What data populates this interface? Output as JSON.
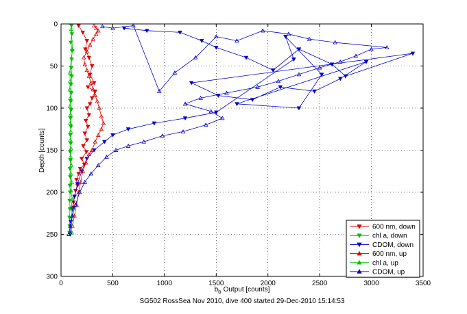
{
  "chart_data": {
    "type": "scatter",
    "title": "",
    "xlabel": "Output [counts]",
    "xlabel_prefix": "b",
    "xlabel_subscript": "b",
    "ylabel": "Depth [counts]",
    "caption": "SG502 RossSea Nov 2010, dive 400 started 29-Dec-2010 15:14:53",
    "xlim": [
      0,
      3500
    ],
    "ylim": [
      0,
      300
    ],
    "y_reversed": true,
    "grid": true,
    "legend_position": "lower-right",
    "x_ticks": [
      0,
      500,
      1000,
      1500,
      2000,
      2500,
      3000,
      3500
    ],
    "y_ticks": [
      0,
      50,
      100,
      150,
      200,
      250,
      300
    ],
    "series": [
      {
        "name": "600 nm, down",
        "color": "#e00000",
        "marker": "triangle-down",
        "x": [
          170,
          210,
          250,
          235,
          270,
          300,
          280,
          320,
          260,
          330,
          300,
          280,
          250,
          270,
          240,
          260,
          230,
          250,
          215,
          245,
          200,
          225,
          185,
          170,
          150,
          160,
          140,
          130,
          120,
          115
        ],
        "y": [
          2,
          10,
          20,
          30,
          40,
          50,
          60,
          70,
          75,
          80,
          88,
          95,
          100,
          108,
          115,
          122,
          130,
          138,
          145,
          152,
          160,
          167,
          172,
          178,
          185,
          192,
          198,
          205,
          212,
          218
        ]
      },
      {
        "name": "chl a, down",
        "color": "#00c000",
        "marker": "triangle-down",
        "x": [
          100,
          105,
          95,
          108,
          102,
          98,
          104,
          96,
          100,
          94,
          98,
          92,
          96,
          90,
          94,
          88,
          92,
          86,
          90,
          85,
          88,
          84,
          86,
          82,
          84,
          82
        ],
        "y": [
          2,
          12,
          22,
          32,
          42,
          52,
          62,
          72,
          82,
          92,
          102,
          112,
          122,
          132,
          142,
          152,
          162,
          172,
          182,
          192,
          200,
          210,
          220,
          230,
          240,
          248
        ]
      },
      {
        "name": "CDOM, down",
        "color": "#0000d0",
        "marker": "triangle-down",
        "x": [
          610,
          830,
          1150,
          1360,
          1500,
          1790,
          2050,
          2300,
          2620,
          2750,
          3400,
          1260,
          1520,
          1850,
          2120,
          2450,
          2700,
          2950,
          1700,
          2300,
          2520,
          2170,
          2250,
          1500,
          1200,
          900,
          650,
          500,
          420,
          320,
          250,
          200,
          160,
          130,
          110,
          95,
          90
        ],
        "y": [
          5,
          8,
          10,
          20,
          28,
          40,
          55,
          30,
          48,
          62,
          35,
          70,
          85,
          90,
          75,
          80,
          65,
          45,
          95,
          100,
          60,
          15,
          42,
          105,
          112,
          118,
          125,
          132,
          140,
          150,
          160,
          175,
          190,
          205,
          220,
          235,
          250
        ]
      },
      {
        "name": "600 nm, up",
        "color": "#e00000",
        "marker": "triangle-up",
        "x": [
          110,
          130,
          150,
          170,
          190,
          210,
          240,
          270,
          300,
          330,
          360,
          390,
          410,
          390,
          370,
          350,
          330,
          310,
          290,
          270,
          250,
          230,
          220,
          250,
          280,
          310,
          340,
          360,
          340,
          320
        ],
        "y": [
          240,
          228,
          215,
          200,
          188,
          175,
          165,
          155,
          150,
          140,
          132,
          125,
          118,
          110,
          100,
          92,
          85,
          78,
          70,
          62,
          55,
          48,
          40,
          33,
          25,
          18,
          12,
          8,
          5,
          2
        ]
      },
      {
        "name": "chl a, up",
        "color": "#00c000",
        "marker": "triangle-up",
        "x": [
          105,
          100,
          110,
          98,
          108,
          96,
          104,
          94,
          100,
          92,
          96,
          90,
          94,
          88,
          92,
          86,
          90,
          84,
          88,
          85,
          110,
          100
        ],
        "y": [
          248,
          238,
          228,
          218,
          208,
          198,
          188,
          178,
          168,
          158,
          148,
          138,
          128,
          118,
          108,
          98,
          88,
          78,
          68,
          58,
          30,
          6
        ]
      },
      {
        "name": "CDOM, up",
        "color": "#0000d0",
        "marker": "triangle-up",
        "x": [
          75,
          90,
          110,
          140,
          180,
          230,
          290,
          360,
          440,
          530,
          650,
          800,
          980,
          1180,
          1400,
          1560,
          1450,
          1200,
          1350,
          1600,
          1900,
          2100,
          2300,
          2500,
          2700,
          2850,
          3000,
          3150,
          2650,
          2400,
          2200,
          1950,
          1700,
          1500,
          1300,
          1100,
          950,
          700,
          500,
          400
        ],
        "y": [
          250,
          240,
          228,
          215,
          200,
          188,
          178,
          168,
          158,
          150,
          145,
          140,
          133,
          128,
          120,
          112,
          104,
          95,
          88,
          82,
          75,
          68,
          60,
          52,
          45,
          38,
          30,
          28,
          22,
          18,
          12,
          8,
          20,
          15,
          40,
          58,
          80,
          2,
          5,
          3
        ]
      }
    ],
    "legend": [
      "600 nm, down",
      "chl a, down",
      "CDOM, down",
      "600 nm, up",
      "chl a, up",
      "CDOM, up"
    ]
  }
}
